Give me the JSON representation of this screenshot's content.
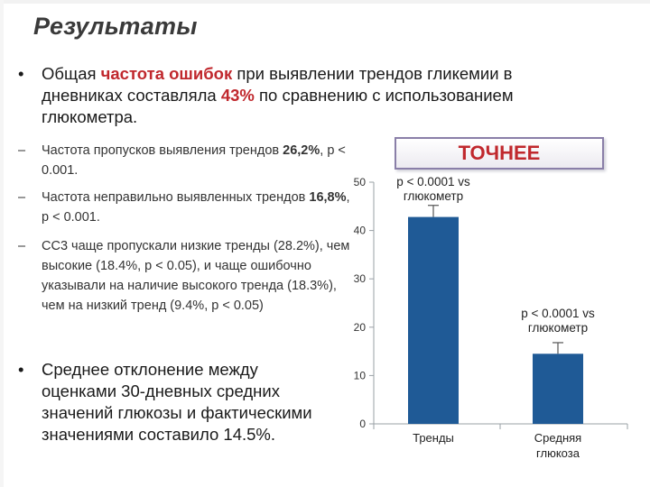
{
  "slide": {
    "title": "Результаты",
    "bullet1": {
      "marker": "•",
      "pre": "Общая ",
      "highlight1": "частота ошибок",
      "mid": " при выявлении трендов гликемии в дневниках составляла ",
      "highlight2": "43%",
      "post": " по сравнению с использованием глюкометра."
    },
    "sub_items": [
      {
        "marker": "–",
        "text": "Частота пропусков выявления трендов ",
        "bold": "26,2%",
        "tail": ", p < 0.001."
      },
      {
        "marker": "–",
        "text": "Частота неправильно выявленных трендов ",
        "bold": "16,8%",
        "tail": ", p < 0.001."
      },
      {
        "marker": "–",
        "text": "СС3 чаще пропускали низкие тренды (28.2%), чем высокие (18.4%, p < 0.05), и чаще ошибочно указывали на наличие высокого тренда (18.3%), чем на низкий тренд (9.4%, p < 0.05)",
        "bold": "",
        "tail": ""
      }
    ],
    "bullet2": {
      "marker": "•",
      "text": "Среднее отклонение между оценками 30-дневных средних значений глюкозы и фактическими значениями составило 14.5%."
    },
    "callout": "ТОЧНЕЕ"
  },
  "chart_data": {
    "type": "bar",
    "categories": [
      "Тренды",
      "Средняя глюкоза"
    ],
    "values": [
      42.8,
      14.5
    ],
    "error_upper": [
      45.2,
      16.8
    ],
    "annotations": [
      "p < 0.0001 vs глюкометр",
      "p < 0.0001 vs глюкометр"
    ],
    "ylim": [
      0,
      50
    ],
    "yticks": [
      0,
      10,
      20,
      30,
      40,
      50
    ],
    "colors": {
      "bar": "#1f5a96",
      "axis": "#9aa0a6",
      "error": "#555555"
    }
  }
}
